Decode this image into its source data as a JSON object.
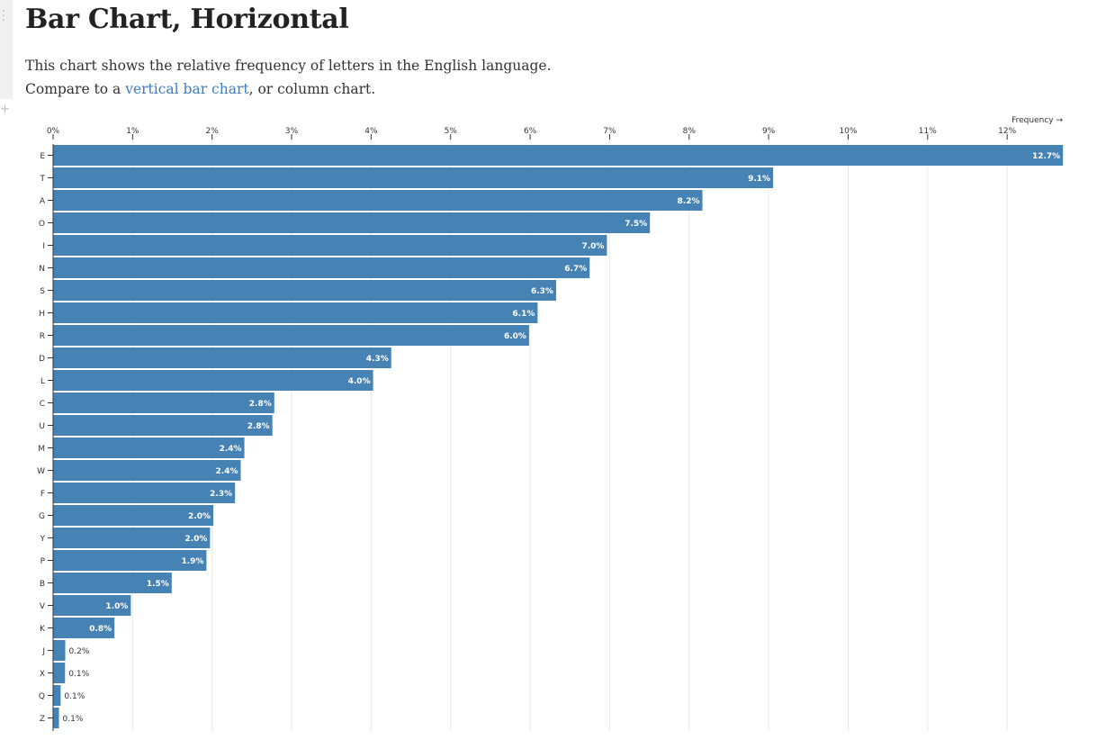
{
  "page": {
    "title": "Bar Chart, Horizontal",
    "description_pre": "This chart shows the relative frequency of letters in the English language. Compare to a ",
    "description_link": "vertical bar chart",
    "description_post": ", or column chart."
  },
  "chart_data": {
    "type": "bar",
    "orientation": "horizontal",
    "xlabel": "Frequency →",
    "xlim": [
      0,
      0.127
    ],
    "grid": true,
    "bar_color": "#4682b4",
    "x_tick_labels": [
      "0%",
      "1%",
      "2%",
      "3%",
      "4%",
      "5%",
      "6%",
      "7%",
      "8%",
      "9%",
      "10%",
      "11%",
      "12%"
    ],
    "categories": [
      "E",
      "T",
      "A",
      "O",
      "I",
      "N",
      "S",
      "H",
      "R",
      "D",
      "L",
      "C",
      "U",
      "M",
      "W",
      "F",
      "G",
      "Y",
      "P",
      "B",
      "V",
      "K",
      "J",
      "X",
      "Q",
      "Z"
    ],
    "values": [
      0.12702,
      0.09056,
      0.08167,
      0.07507,
      0.06966,
      0.06749,
      0.06327,
      0.06094,
      0.05987,
      0.04253,
      0.04025,
      0.02782,
      0.02758,
      0.02406,
      0.0236,
      0.02288,
      0.02015,
      0.01974,
      0.01929,
      0.01492,
      0.00978,
      0.00772,
      0.00153,
      0.0015,
      0.00095,
      0.00074
    ],
    "value_labels": [
      "12.7%",
      "9.1%",
      "8.2%",
      "7.5%",
      "7.0%",
      "6.7%",
      "6.3%",
      "6.1%",
      "6.0%",
      "4.3%",
      "4.0%",
      "2.8%",
      "2.8%",
      "2.4%",
      "2.4%",
      "2.3%",
      "2.0%",
      "2.0%",
      "1.9%",
      "1.5%",
      "1.0%",
      "0.8%",
      "0.2%",
      "0.1%",
      "0.1%",
      "0.1%"
    ]
  }
}
